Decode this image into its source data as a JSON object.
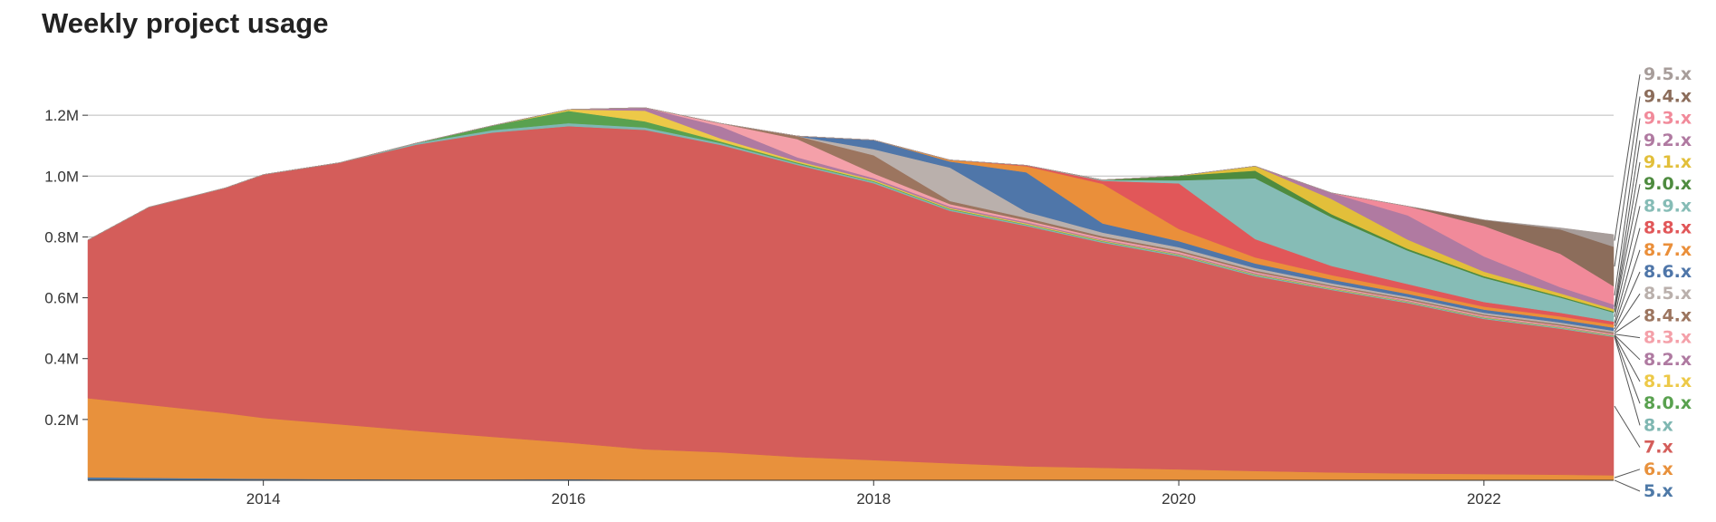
{
  "chart_data": {
    "type": "area",
    "stacked": true,
    "title": "Weekly project usage",
    "xlabel": "",
    "ylabel": "",
    "x_range": [
      2012.85,
      2022.85
    ],
    "ylim": [
      0,
      1400000
    ],
    "x_ticks": [
      {
        "value": 2014,
        "label": "2014"
      },
      {
        "value": 2016,
        "label": "2016"
      },
      {
        "value": 2018,
        "label": "2018"
      },
      {
        "value": 2020,
        "label": "2020"
      },
      {
        "value": 2022,
        "label": "2022"
      }
    ],
    "y_ticks": [
      {
        "value": 200000,
        "label": "0.2M"
      },
      {
        "value": 400000,
        "label": "0.4M"
      },
      {
        "value": 600000,
        "label": "0.6M"
      },
      {
        "value": 800000,
        "label": "0.8M"
      },
      {
        "value": 1000000,
        "label": "1.0M"
      },
      {
        "value": 1200000,
        "label": "1.2M"
      }
    ],
    "grid": true,
    "legend": "right",
    "x": [
      2012.85,
      2013.25,
      2013.75,
      2014.0,
      2014.5,
      2015.0,
      2015.5,
      2016.0,
      2016.5,
      2017.0,
      2017.5,
      2018.0,
      2018.5,
      2019.0,
      2019.5,
      2020.0,
      2020.5,
      2021.0,
      2021.5,
      2022.0,
      2022.5,
      2022.85
    ],
    "series": [
      {
        "name": "5.x",
        "color": "#4e79a7",
        "values": [
          10000,
          8000,
          6000,
          5000,
          4000,
          3000,
          3000,
          4000,
          2000,
          2000,
          1500,
          1500,
          1000,
          1000,
          1000,
          1000,
          800,
          800,
          600,
          600,
          500,
          500
        ]
      },
      {
        "name": "6.x",
        "color": "#e8913c",
        "values": [
          260000,
          240000,
          215000,
          200000,
          180000,
          160000,
          140000,
          120000,
          100000,
          90000,
          75000,
          65000,
          55000,
          45000,
          40000,
          35000,
          30000,
          25000,
          22000,
          20000,
          18000,
          16000
        ]
      },
      {
        "name": "7.x",
        "color": "#d45d5a",
        "values": [
          520000,
          650000,
          740000,
          800000,
          860000,
          940000,
          1000000,
          1040000,
          1050000,
          1010000,
          960000,
          910000,
          830000,
          790000,
          740000,
          700000,
          640000,
          600000,
          560000,
          510000,
          480000,
          455000
        ]
      },
      {
        "name": "8.x",
        "color": "#7fb7b2",
        "values": [
          0,
          0,
          0,
          0,
          0,
          5000,
          8000,
          10000,
          8000,
          6000,
          5000,
          5000,
          4000,
          4000,
          4000,
          4000,
          4000,
          3000,
          3000,
          3000,
          3000,
          3000
        ]
      },
      {
        "name": "8.0.x",
        "color": "#59a14f",
        "values": [
          0,
          0,
          0,
          0,
          0,
          0,
          15000,
          40000,
          20000,
          5000,
          3000,
          2000,
          2000,
          1500,
          1500,
          1000,
          1000,
          1000,
          1000,
          1000,
          800,
          800
        ]
      },
      {
        "name": "8.1.x",
        "color": "#edc948",
        "values": [
          0,
          0,
          0,
          0,
          0,
          0,
          0,
          5000,
          35000,
          10000,
          5000,
          4000,
          3000,
          3000,
          2000,
          2000,
          2000,
          2000,
          1500,
          1500,
          1500,
          1500
        ]
      },
      {
        "name": "8.2.x",
        "color": "#af7aa1",
        "values": [
          0,
          0,
          0,
          0,
          0,
          0,
          0,
          0,
          10000,
          40000,
          12000,
          6000,
          5000,
          4000,
          3000,
          3000,
          3000,
          2000,
          2000,
          2000,
          2000,
          2000
        ]
      },
      {
        "name": "8.3.x",
        "color": "#f4a0a9",
        "values": [
          0,
          0,
          0,
          0,
          0,
          0,
          0,
          0,
          0,
          10000,
          60000,
          15000,
          8000,
          6000,
          5000,
          5000,
          4000,
          3000,
          3000,
          3000,
          3000,
          3000
        ]
      },
      {
        "name": "8.4.x",
        "color": "#9c755f",
        "values": [
          0,
          0,
          0,
          0,
          0,
          0,
          0,
          0,
          0,
          0,
          10000,
          60000,
          10000,
          8000,
          6000,
          5000,
          5000,
          4000,
          4000,
          4000,
          4000,
          4000
        ]
      },
      {
        "name": "8.5.x",
        "color": "#bab0ac",
        "values": [
          0,
          0,
          0,
          0,
          0,
          0,
          0,
          0,
          0,
          0,
          0,
          20000,
          110000,
          20000,
          12000,
          10000,
          8000,
          7000,
          6000,
          6000,
          6000,
          6000
        ]
      },
      {
        "name": "8.6.x",
        "color": "#4f76a9",
        "values": [
          0,
          0,
          0,
          0,
          0,
          0,
          0,
          0,
          0,
          0,
          0,
          30000,
          20000,
          130000,
          30000,
          20000,
          15000,
          12000,
          10000,
          10000,
          10000,
          10000
        ]
      },
      {
        "name": "8.7.x",
        "color": "#ea8f3a",
        "values": [
          0,
          0,
          0,
          0,
          0,
          0,
          0,
          0,
          0,
          0,
          0,
          0,
          5000,
          20000,
          130000,
          40000,
          20000,
          15000,
          12000,
          10000,
          10000,
          10000
        ]
      },
      {
        "name": "8.8.x",
        "color": "#e15759",
        "values": [
          0,
          0,
          0,
          0,
          0,
          0,
          0,
          0,
          0,
          0,
          0,
          0,
          0,
          3000,
          10000,
          150000,
          60000,
          30000,
          20000,
          15000,
          12000,
          10000
        ]
      },
      {
        "name": "8.9.x",
        "color": "#86bcb6",
        "values": [
          0,
          0,
          0,
          0,
          0,
          0,
          0,
          0,
          0,
          0,
          0,
          0,
          0,
          0,
          3000,
          10000,
          200000,
          160000,
          110000,
          80000,
          50000,
          30000
        ]
      },
      {
        "name": "9.0.x",
        "color": "#4e8b3f",
        "values": [
          0,
          0,
          0,
          0,
          0,
          0,
          0,
          0,
          0,
          0,
          0,
          0,
          0,
          0,
          0,
          15000,
          25000,
          10000,
          6000,
          5000,
          4000,
          3000
        ]
      },
      {
        "name": "9.1.x",
        "color": "#e2bf3a",
        "values": [
          0,
          0,
          0,
          0,
          0,
          0,
          0,
          0,
          0,
          0,
          0,
          0,
          0,
          0,
          0,
          0,
          15000,
          50000,
          30000,
          15000,
          10000,
          8000
        ]
      },
      {
        "name": "9.2.x",
        "color": "#b07aa1",
        "values": [
          0,
          0,
          0,
          0,
          0,
          0,
          0,
          0,
          0,
          0,
          0,
          0,
          0,
          0,
          0,
          0,
          0,
          20000,
          80000,
          50000,
          20000,
          15000
        ]
      },
      {
        "name": "9.3.x",
        "color": "#f18a9a",
        "values": [
          0,
          0,
          0,
          0,
          0,
          0,
          0,
          0,
          0,
          0,
          0,
          0,
          0,
          0,
          0,
          0,
          0,
          0,
          30000,
          100000,
          110000,
          60000
        ]
      },
      {
        "name": "9.4.x",
        "color": "#8c6d5b",
        "values": [
          0,
          0,
          0,
          0,
          0,
          0,
          0,
          0,
          0,
          0,
          0,
          0,
          0,
          0,
          0,
          0,
          0,
          0,
          0,
          20000,
          80000,
          130000
        ]
      },
      {
        "name": "9.5.x",
        "color": "#a79d9a",
        "values": [
          0,
          0,
          0,
          0,
          0,
          0,
          0,
          0,
          0,
          0,
          0,
          0,
          0,
          0,
          0,
          0,
          0,
          0,
          0,
          0,
          5000,
          40000
        ]
      }
    ]
  }
}
